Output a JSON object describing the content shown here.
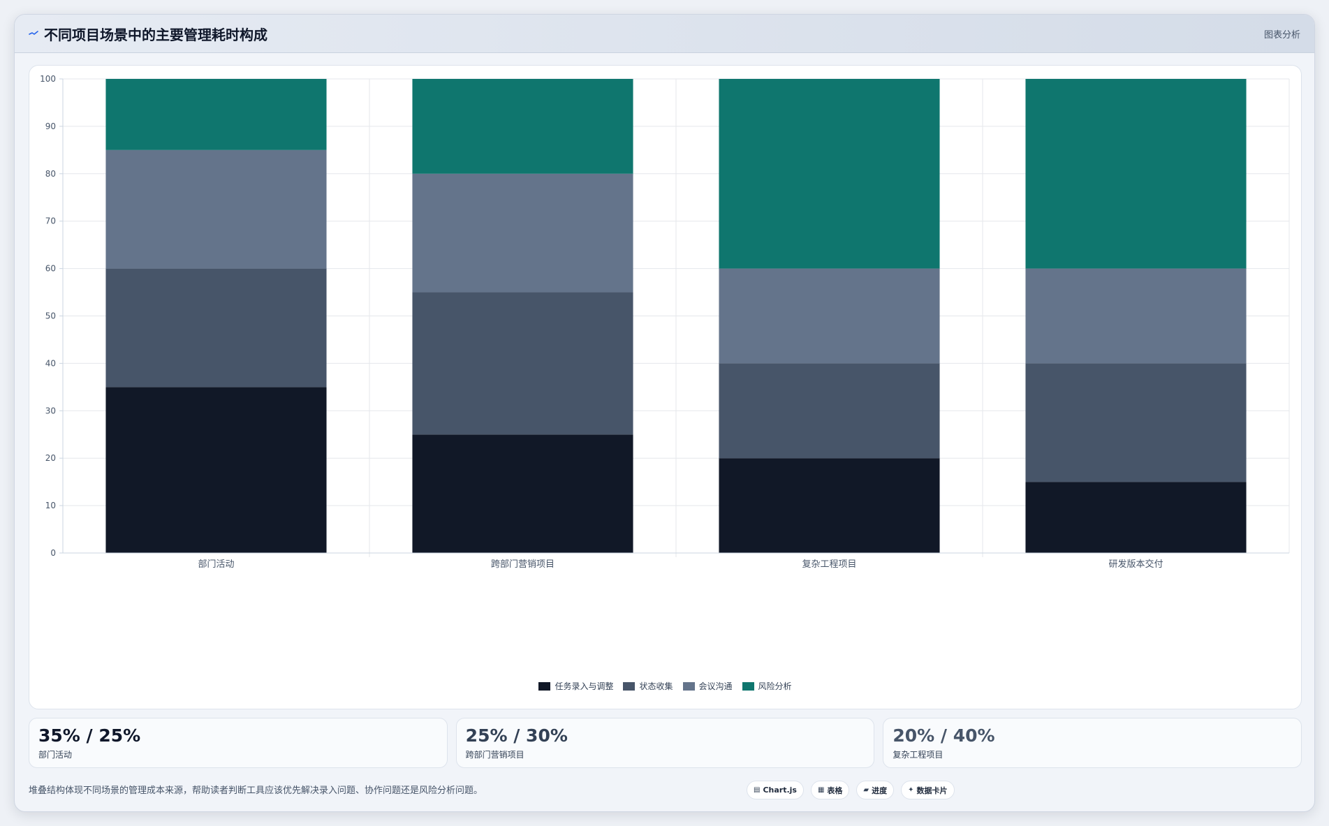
{
  "header": {
    "title": "不同项目场景中的主要管理耗时构成",
    "meta": "图表分析",
    "title_icon": "trend-icon"
  },
  "chart_data": {
    "type": "bar",
    "stacked": true,
    "categories": [
      "部门活动",
      "跨部门营销项目",
      "复杂工程项目",
      "研发版本交付"
    ],
    "series": [
      {
        "name": "任务录入与调整",
        "color": "#111827",
        "values": [
          35,
          25,
          20,
          15
        ]
      },
      {
        "name": "状态收集",
        "color": "#475569",
        "values": [
          25,
          30,
          20,
          25
        ]
      },
      {
        "name": "会议沟通",
        "color": "#64748b",
        "values": [
          25,
          25,
          20,
          20
        ]
      },
      {
        "name": "风险分析",
        "color": "#0f766e",
        "values": [
          15,
          20,
          40,
          40
        ]
      }
    ],
    "ylim": [
      0,
      100
    ],
    "yticks": [
      "0",
      "10",
      "20",
      "30",
      "40",
      "50",
      "60",
      "70",
      "80",
      "90",
      "100"
    ],
    "grid": true,
    "legend_position": "bottom"
  },
  "stats": [
    {
      "value": "35% / 25%",
      "label": "部门活动",
      "color": "#0f172a"
    },
    {
      "value": "25% / 30%",
      "label": "跨部门营销项目",
      "color": "#334155"
    },
    {
      "value": "20% / 40%",
      "label": "复杂工程项目",
      "color": "#475569"
    }
  ],
  "footer": {
    "note": "堆叠结构体现不同场景的管理成本来源，帮助读者判断工具应该优先解决录入问题、协作问题还是风险分析问题。",
    "chips": [
      {
        "icon": "▤",
        "label": "Chart.js"
      },
      {
        "icon": "▦",
        "label": "表格"
      },
      {
        "icon": "▰",
        "label": "进度"
      },
      {
        "icon": "✦",
        "label": "数据卡片"
      }
    ]
  }
}
